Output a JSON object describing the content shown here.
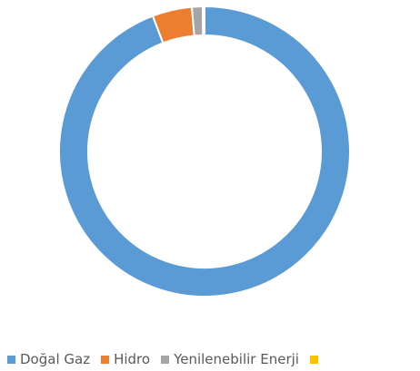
{
  "chart_data": {
    "type": "donut",
    "categories": [
      "Doğal Gaz",
      "Hidro",
      "Yenilenebilir Enerji",
      null
    ],
    "values": [
      94.2,
      4.4,
      1.2,
      0.2
    ],
    "colors": [
      "#5b9bd5",
      "#ed7d31",
      "#a5a5a5",
      "#ffc000"
    ],
    "legend": "bottom"
  }
}
